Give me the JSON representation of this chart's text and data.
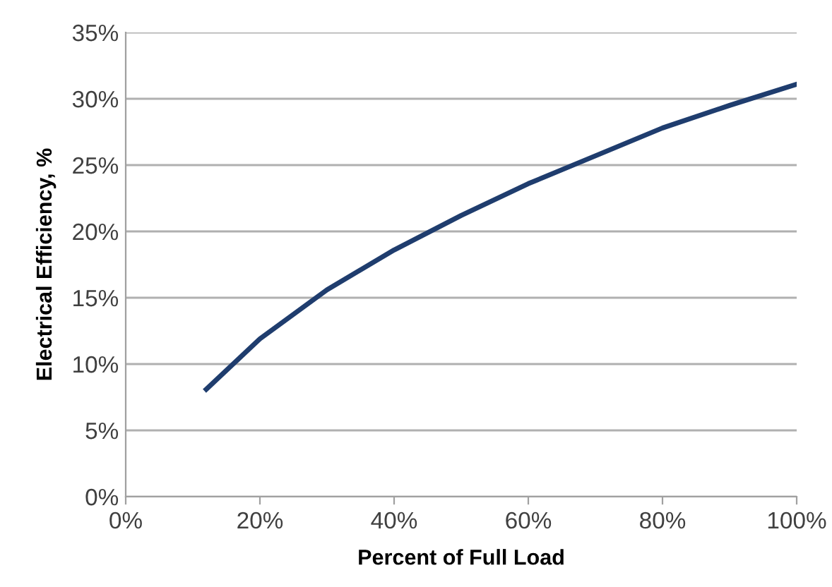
{
  "chart_data": {
    "type": "line",
    "xlabel": "Percent of Full Load",
    "ylabel": "Electrical Efficiency, %",
    "x": [
      12,
      20,
      30,
      40,
      50,
      60,
      70,
      80,
      90,
      100
    ],
    "series": [
      {
        "color": "#1f3d6e",
        "values": [
          8.1,
          11.9,
          15.6,
          18.6,
          21.2,
          23.6,
          25.7,
          27.8,
          29.5,
          31.1
        ]
      }
    ],
    "xlim": [
      0,
      100
    ],
    "xticks": [
      {
        "value": 0,
        "label": "0%"
      },
      {
        "value": 20,
        "label": "20%"
      },
      {
        "value": 40,
        "label": "40%"
      },
      {
        "value": 60,
        "label": "60%"
      },
      {
        "value": 80,
        "label": "80%"
      },
      {
        "value": 100,
        "label": "100%"
      }
    ],
    "ylim": [
      0,
      35
    ],
    "yticks": [
      {
        "value": 0,
        "label": "0%"
      },
      {
        "value": 5,
        "label": "5%"
      },
      {
        "value": 10,
        "label": "10%"
      },
      {
        "value": 15,
        "label": "15%"
      },
      {
        "value": 20,
        "label": "20%"
      },
      {
        "value": 25,
        "label": "25%"
      },
      {
        "value": 30,
        "label": "30%"
      },
      {
        "value": 35,
        "label": "35%"
      }
    ],
    "grid": "y",
    "marker": "none",
    "line_style": "solid",
    "legend": false
  }
}
